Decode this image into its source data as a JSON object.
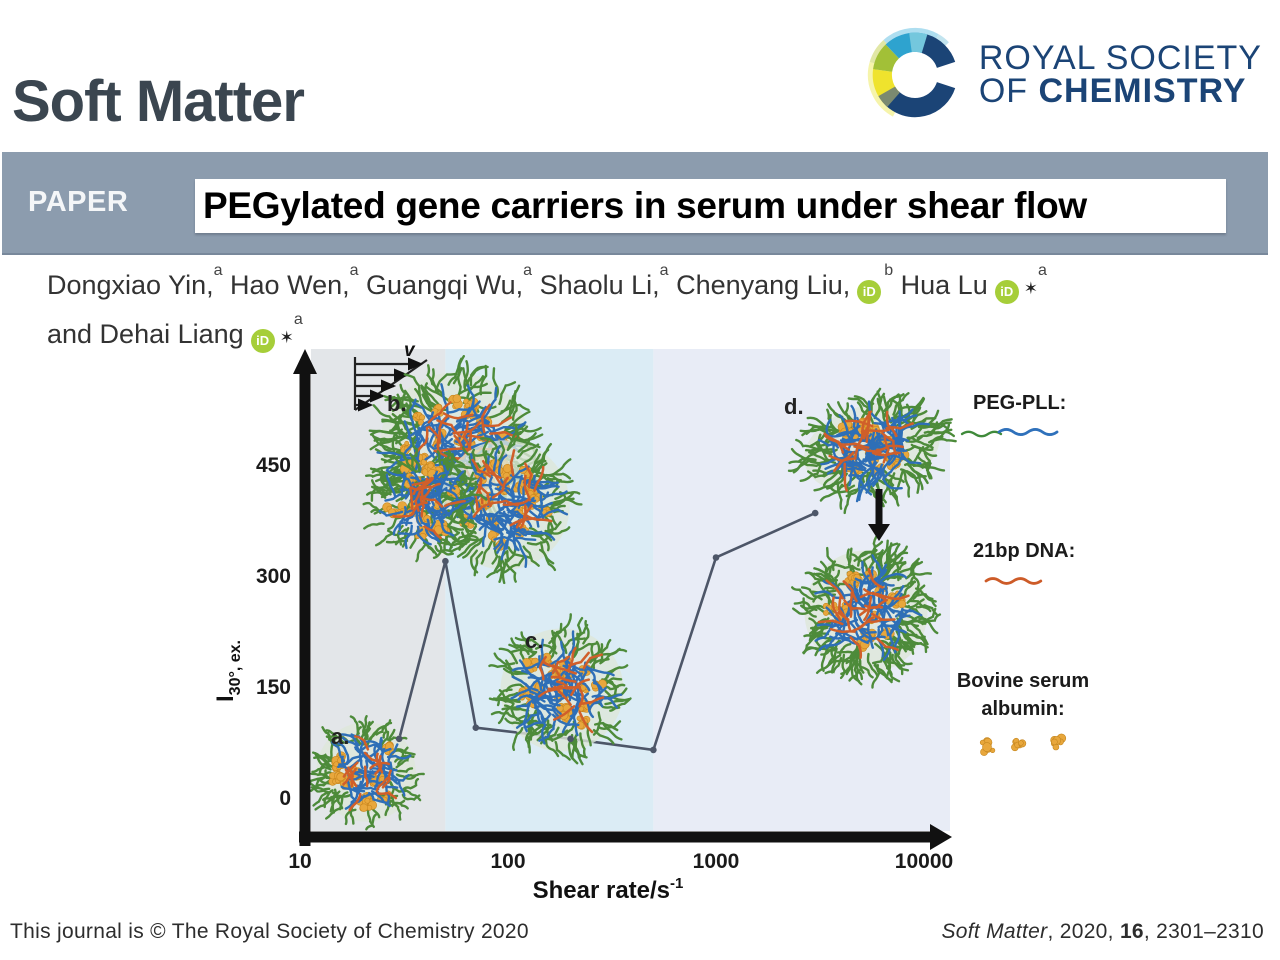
{
  "journal": {
    "name": "Soft Matter",
    "banner_label": "PAPER",
    "title": "PEGylated gene carriers in serum under shear  flow"
  },
  "publisher": {
    "line1": "ROYAL SOCIETY",
    "line2_prefix": "OF",
    "line2_name": "CHEMISTRY"
  },
  "authors": {
    "star_glyph": "✶",
    "orcid_label": "iD",
    "lines": [
      {
        "segments": [
          {
            "text": "Dongxiao Yin,",
            "sup": "a"
          },
          {
            "text": "Hao Wen,",
            "sup": "a"
          },
          {
            "text": "Guangqi Wu,",
            "sup": "a"
          },
          {
            "text": "Shaolu Li,",
            "sup": "a"
          },
          {
            "text": "Chenyang Liu,",
            "orcid": true,
            "sup": "b"
          },
          {
            "text": "Hua Lu",
            "orcid": true,
            "star": true,
            "sup": "a"
          }
        ]
      },
      {
        "segments": [
          {
            "text": "and Dehai Liang",
            "orcid": true,
            "star": true,
            "sup": "a"
          }
        ]
      }
    ]
  },
  "chart_data": {
    "type": "line",
    "x_scale": "log",
    "x": [
      30,
      50,
      70,
      200,
      500,
      1000,
      3000
    ],
    "y": [
      80,
      320,
      95,
      80,
      65,
      325,
      385
    ],
    "x_ticks": [
      10,
      100,
      1000,
      10000
    ],
    "y_ticks": [
      450,
      300,
      150,
      0
    ],
    "xlim": [
      10,
      10000
    ],
    "ylim": [
      0,
      520
    ],
    "xlabel": "Shear rate/s⁻¹",
    "xlabel_main": "Shear rate/s",
    "xlabel_sup": "-1",
    "ylabel": "I30°, ex.",
    "ylabel_main": "I",
    "ylabel_sub": "30°, ex.",
    "grid": false,
    "line_color": "#4d5668",
    "zones": [
      {
        "from": 10,
        "to": 50,
        "color": "#e3e6e9"
      },
      {
        "from": 50,
        "to": 500,
        "color": "#dbecf5"
      },
      {
        "from": 500,
        "to": 10000,
        "color": "#e8ecf6"
      }
    ],
    "region_labels": [
      "a.",
      "b.",
      "c.",
      "d."
    ],
    "velocity_label": "v"
  },
  "legend": {
    "items": [
      {
        "label": "PEG-PLL:",
        "label_lines": [
          "PEG-PLL:"
        ],
        "swatch": "green-blue-squiggle"
      },
      {
        "label": "21bp DNA:",
        "label_lines": [
          "21bp DNA:"
        ],
        "swatch": "orange-squiggle"
      },
      {
        "label": "Bovine serum albumin:",
        "label_lines": [
          "Bovine serum",
          "albumin:"
        ],
        "swatch": "yellow-blobs"
      }
    ]
  },
  "footer": {
    "left": "This journal is © The Royal Society of Chemistry 2020",
    "cite_journal": "Soft Matter",
    "cite_sep1": ", 2020, ",
    "cite_volume": "16",
    "cite_pages": ", 2301–2310"
  },
  "colors": {
    "banner": "#8c9cae",
    "header_text": "#3b4650",
    "rsc_navy": "#1b4476",
    "orcid_green": "#a6ce39",
    "peg_green": "#3f8a3a",
    "pll_blue": "#2f71bb",
    "dna_orange": "#cd5b28",
    "bsa_yellow": "#e8a73c",
    "zone_a": "#e3e6e9",
    "zone_b": "#dbecf5",
    "zone_c": "#e8ecf6",
    "trace": "#4d5668"
  }
}
